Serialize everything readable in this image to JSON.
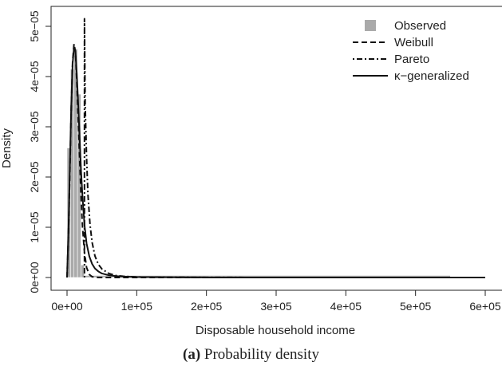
{
  "chart_data": {
    "type": "line",
    "xlabel": "Disposable household income",
    "ylabel": "Density",
    "xlim": [
      0,
      600000
    ],
    "ylim": [
      0,
      5e-05
    ],
    "x_ticks": [
      0,
      100000,
      200000,
      300000,
      400000,
      500000,
      600000
    ],
    "x_tick_labels": [
      "0e+00",
      "1e+05",
      "2e+05",
      "3e+05",
      "4e+05",
      "5e+05",
      "6e+05"
    ],
    "y_ticks": [
      0,
      1e-05,
      2e-05,
      3e-05,
      4e-05,
      5e-05
    ],
    "y_tick_labels": [
      "0e+00",
      "1e−05",
      "2e−05",
      "3e−05",
      "4e−05",
      "5e−05"
    ],
    "grid": false,
    "legend_position": "top-right",
    "histogram": {
      "name": "Observed",
      "color": "#aaaaaa",
      "bins": [
        {
          "x0": 0,
          "x1": 5000,
          "value": 2.58e-05
        },
        {
          "x0": 5000,
          "x1": 10000,
          "value": 4.15e-05
        },
        {
          "x0": 10000,
          "x1": 15000,
          "value": 4.55e-05
        },
        {
          "x0": 15000,
          "x1": 20000,
          "value": 3.65e-05
        },
        {
          "x0": 20000,
          "x1": 25000,
          "value": 2.5e-06
        },
        {
          "x0": 25000,
          "x1": 550000,
          "value": 4e-07
        }
      ]
    },
    "series": [
      {
        "name": "Weibull",
        "line_style": "dashed",
        "x": [
          0,
          2000,
          4000,
          6000,
          8000,
          10000,
          12000,
          14000,
          16000,
          18000,
          20000,
          22000,
          25000,
          28000,
          32000,
          36000,
          40000,
          45000,
          50000,
          60000,
          80000,
          100000,
          600000
        ],
        "y": [
          0,
          8.5e-06,
          2.05e-05,
          3.35e-05,
          4.3e-05,
          4.65e-05,
          4.5e-05,
          3.9e-05,
          3.15e-05,
          2.4e-05,
          1.65e-05,
          1.05e-05,
          5e-06,
          2e-06,
          6e-07,
          1.5e-07,
          5e-08,
          0,
          0,
          0,
          0,
          0,
          0
        ]
      },
      {
        "name": "Pareto",
        "line_style": "dotdash",
        "x": [
          25000,
          25000,
          26000,
          28000,
          30000,
          33000,
          36000,
          40000,
          45000,
          50000,
          60000,
          70000,
          80000,
          100000,
          150000,
          200000,
          300000,
          600000
        ],
        "y": [
          0,
          5.15e-05,
          3.45e-05,
          2.4e-05,
          1.65e-05,
          1.05e-05,
          7e-06,
          4.3e-06,
          2.6e-06,
          1.7e-06,
          8e-07,
          4e-07,
          2.5e-07,
          1e-07,
          4e-08,
          2e-08,
          0,
          0
        ]
      },
      {
        "name": "κ−generalized",
        "line_style": "solid",
        "x": [
          0,
          2000,
          4000,
          6000,
          8000,
          10000,
          12000,
          14000,
          16000,
          18000,
          20000,
          22000,
          25000,
          28000,
          32000,
          36000,
          40000,
          45000,
          50000,
          60000,
          70000,
          80000,
          100000,
          150000,
          200000,
          300000,
          600000
        ],
        "y": [
          0,
          9e-06,
          2.15e-05,
          3.4e-05,
          4.25e-05,
          4.58e-05,
          4.5e-05,
          4.05e-05,
          3.45e-05,
          2.8e-05,
          2.15e-05,
          1.65e-05,
          1.05e-05,
          6.8e-06,
          4.2e-06,
          2.7e-06,
          1.8e-06,
          1.2e-06,
          8e-07,
          4.5e-07,
          2.8e-07,
          1.8e-07,
          9e-08,
          3e-08,
          1e-08,
          0,
          0
        ]
      }
    ]
  },
  "caption": {
    "label": "(a)",
    "text": "Probability density"
  }
}
